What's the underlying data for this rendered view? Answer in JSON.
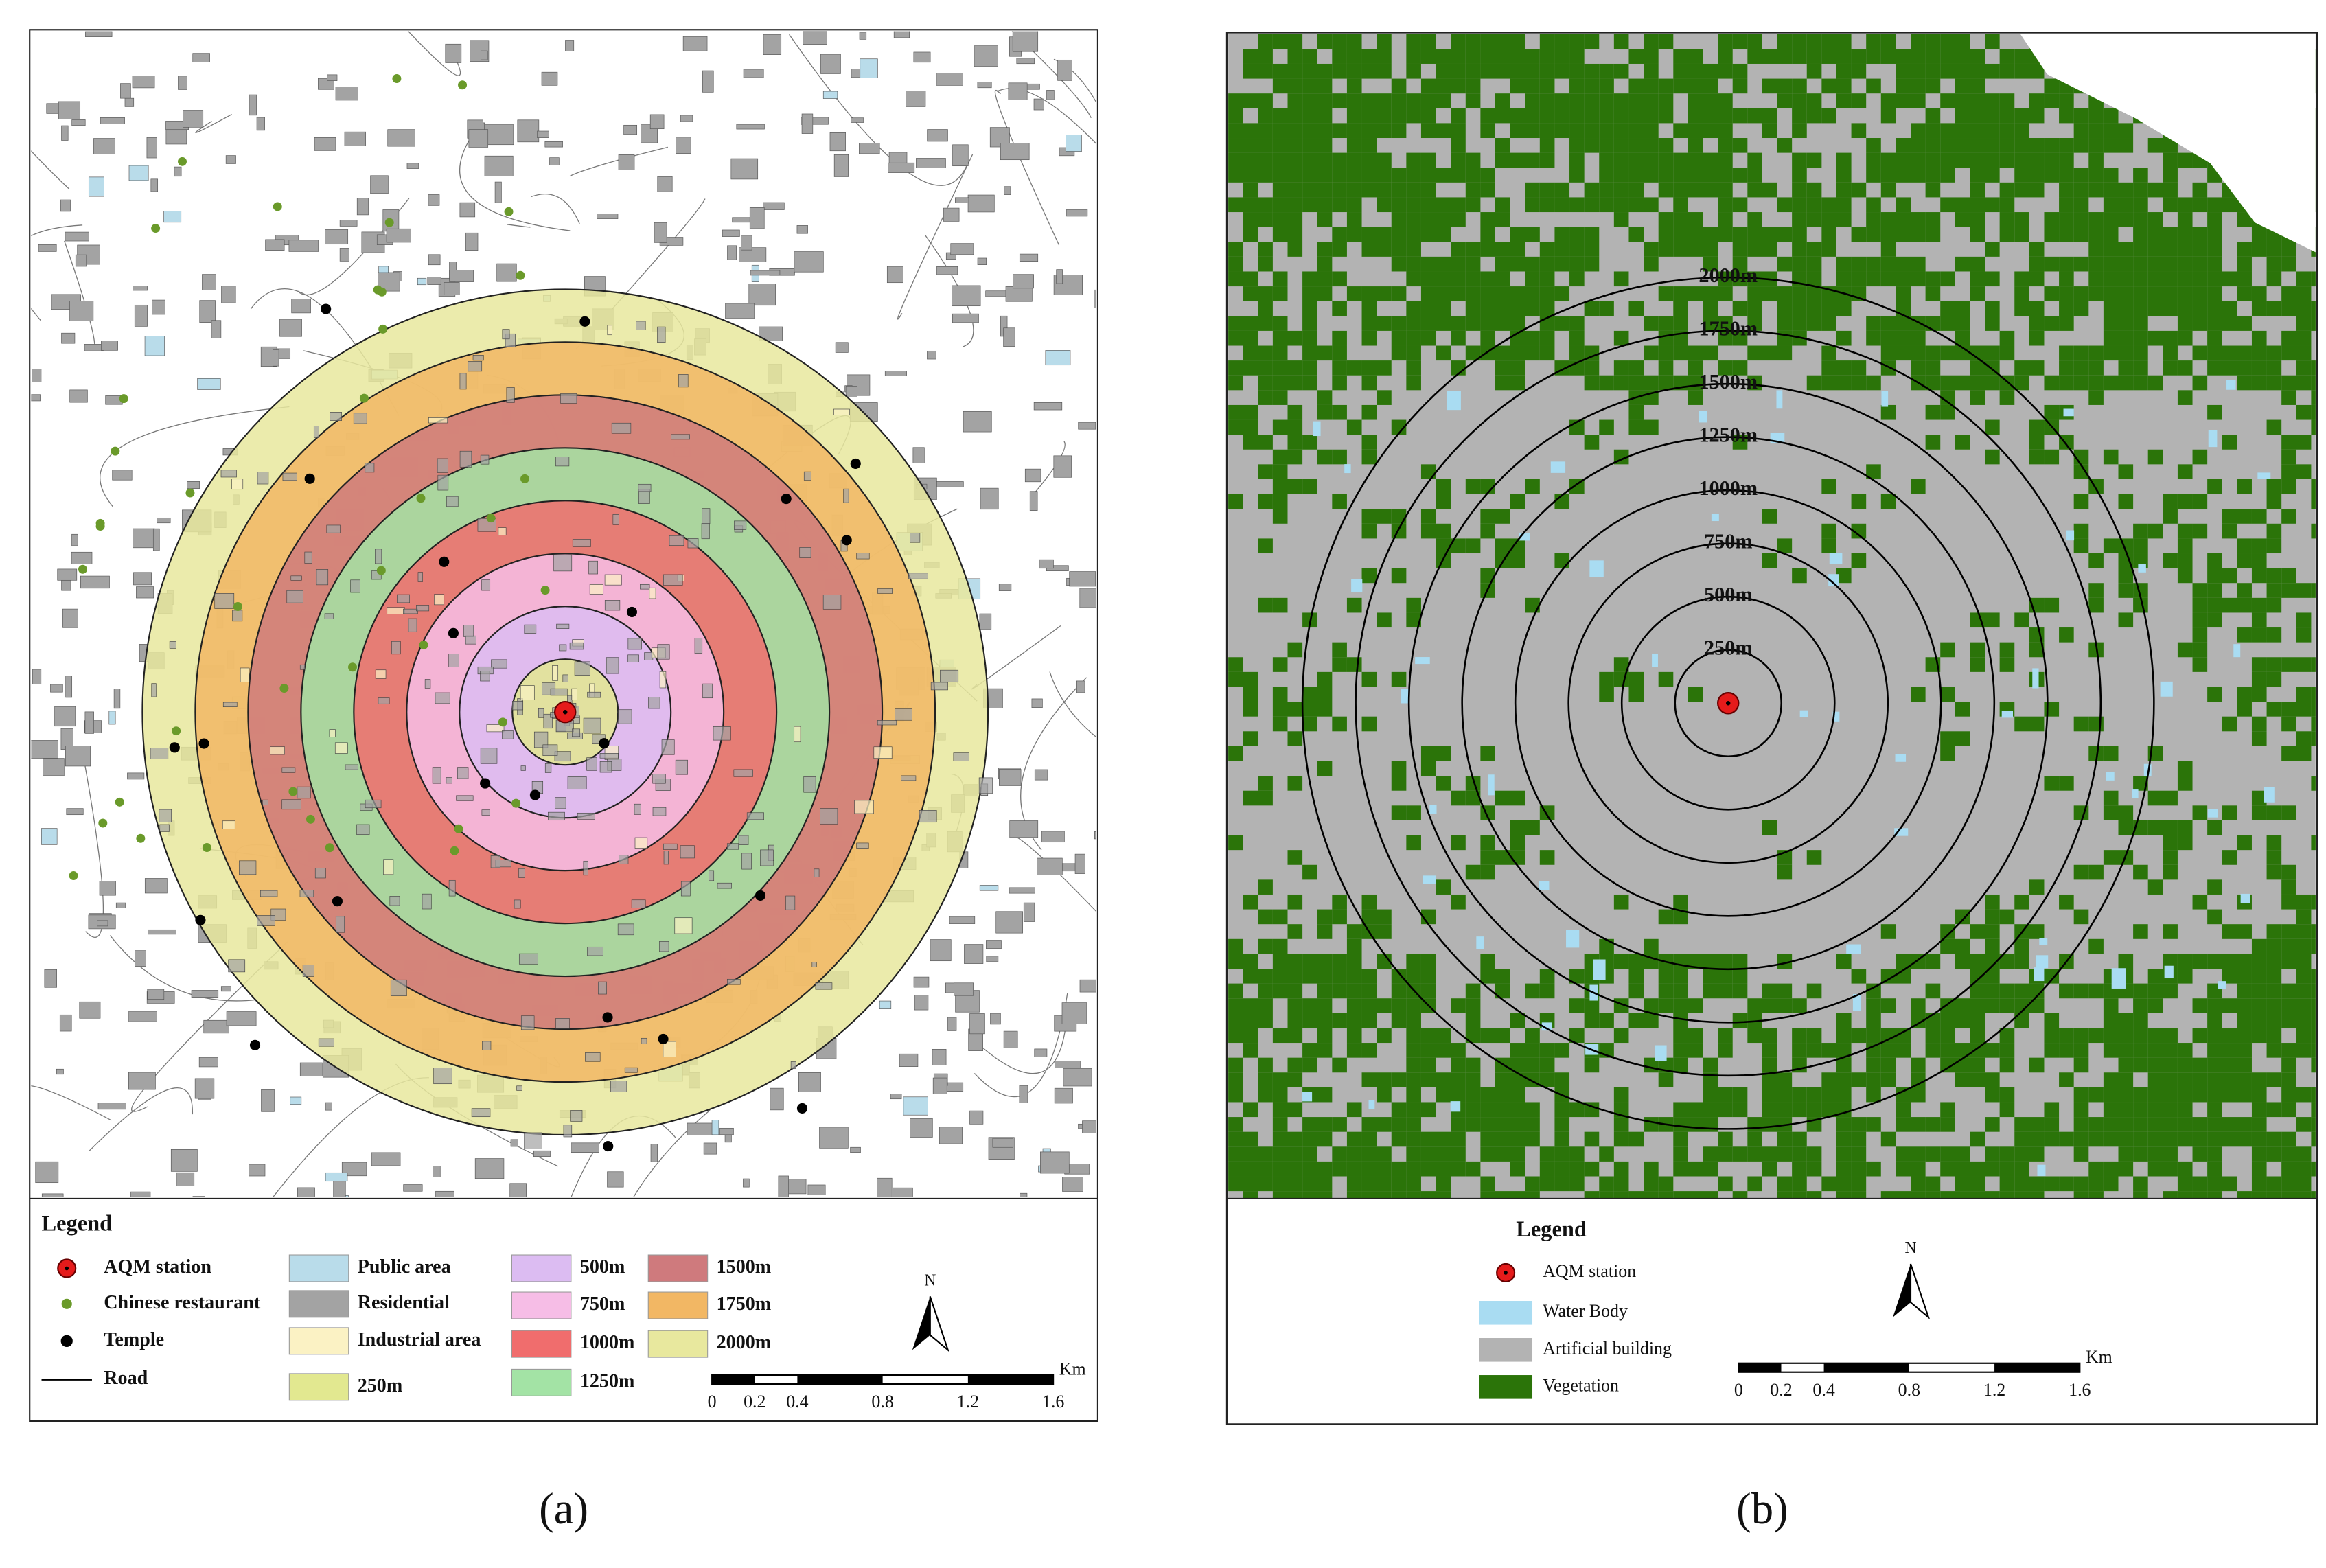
{
  "panels": [
    {
      "label": "(a)",
      "legend_title": "Legend",
      "symbols": [
        "AQM station",
        "Chinese restaurant",
        "Temple",
        "Road"
      ],
      "land_use": [
        {
          "label": "Public area",
          "color": "#b9dcea"
        },
        {
          "label": "Residential",
          "color": "#a3a3a3"
        },
        {
          "label": "Industrial area",
          "color": "#fbf2c4"
        }
      ],
      "buffers": [
        {
          "label": "250m",
          "color": "#e2e890"
        },
        {
          "label": "500m",
          "color": "#dcbcf2"
        },
        {
          "label": "750m",
          "color": "#f6bde6"
        },
        {
          "label": "1000m",
          "color": "#f06d6d"
        },
        {
          "label": "1250m",
          "color": "#a3e3a5"
        },
        {
          "label": "1500m",
          "color": "#cf7a7d"
        },
        {
          "label": "1750m",
          "color": "#f2b764"
        },
        {
          "label": "2000m",
          "color": "#e8e89e"
        }
      ],
      "scale": {
        "unit": "Km",
        "ticks": [
          "0",
          "0.2",
          "0.4",
          "0.8",
          "1.2",
          "1.6"
        ]
      },
      "north": "N"
    },
    {
      "label": "(b)",
      "legend_title": "Legend",
      "symbols": [
        "AQM station"
      ],
      "land_cover": [
        {
          "label": "Water Body",
          "color": "#a9dcf2"
        },
        {
          "label": "Artificial building",
          "color": "#b3b3b3"
        },
        {
          "label": "Vegetation",
          "color": "#2b7409"
        }
      ],
      "buffers": [
        "250m",
        "500m",
        "750m",
        "1000m",
        "1250m",
        "1500m",
        "1750m",
        "2000m"
      ],
      "scale": {
        "unit": "Km",
        "ticks": [
          "0",
          "0.2",
          "0.4",
          "0.8",
          "1.2",
          "1.6"
        ]
      },
      "north": "N"
    }
  ]
}
